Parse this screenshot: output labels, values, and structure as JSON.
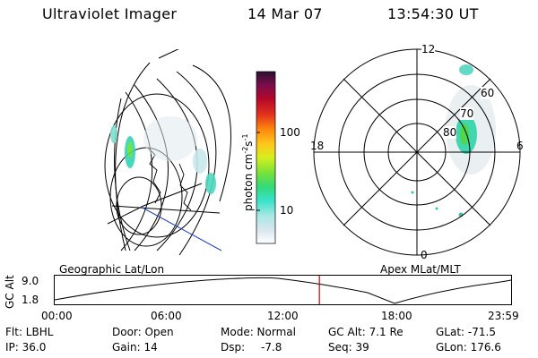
{
  "header": {
    "instrument": "Ultraviolet Imager",
    "date": "14 Mar 07",
    "time": "13:54:30 UT"
  },
  "colorbar": {
    "label": "photon cm",
    "label_sup1": "-2",
    "label_mid": "s",
    "label_sup2": "-1",
    "ticks": [
      {
        "value": 100,
        "label": "100"
      },
      {
        "value": 10,
        "label": "10"
      }
    ],
    "scale": "log",
    "stops": [
      "#ffffff",
      "#d8e6ee",
      "#a9e8e4",
      "#38e2c8",
      "#34d978",
      "#78e23a",
      "#d6ef1f",
      "#ffc61a",
      "#ff8b0d",
      "#e2321d",
      "#b5082a",
      "#7c0d4b",
      "#2a1030"
    ]
  },
  "geographic_map": {
    "label": "Geographic Lat/Lon"
  },
  "polar_plot": {
    "label": "Apex MLat/MLT",
    "mlt_labels": {
      "top": "12",
      "left": "18",
      "right": "6",
      "bottom": "0"
    },
    "lat_labels": [
      "60",
      "70",
      "80"
    ]
  },
  "altitude_plot": {
    "ylabel": "GC Alt",
    "yticks": [
      "9.0",
      "1.8"
    ],
    "xticks": [
      "00:00",
      "06:00",
      "12:00",
      "18:00",
      "23:59"
    ],
    "current_time_marker": "13:54:30",
    "marker_color": "#cc0000"
  },
  "status": {
    "col1": [
      "Flt: LBHL",
      "IP: 36.0"
    ],
    "col2": [
      "Door: Open",
      "Gain: 14"
    ],
    "col3a": [
      "Mode: Normal",
      "Dsp:"
    ],
    "col3b": [
      "-7.8"
    ],
    "col4a": [
      "GC Alt: 7.1 Re",
      "Seq: 39"
    ],
    "col5": [
      "GLat: -71.5",
      "GLon: 176.6"
    ]
  }
}
